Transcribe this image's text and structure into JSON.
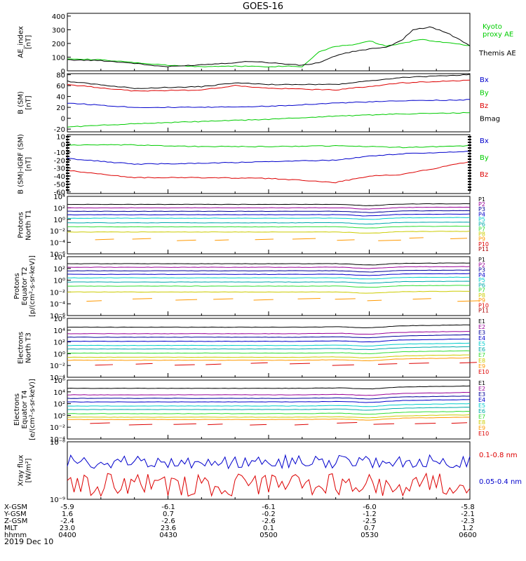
{
  "title": "GOES-16",
  "date_label": "2019 Dec 10",
  "colors": {
    "black": "#000000",
    "green": "#00cc00",
    "red": "#dd0000",
    "blue": "#0000cc",
    "purple": "#990099",
    "darkblue": "#000099",
    "cyan": "#00cccc",
    "teal": "#00aaaa",
    "lime": "#33dd33",
    "yellow": "#cccc00",
    "orange": "#ff9900",
    "lightgreen": "#44ee44",
    "darkred": "#aa0000"
  },
  "ephemeris": {
    "rows": [
      {
        "label": "X-GSM",
        "values": [
          "-5.9",
          "-6.1",
          "-6.1",
          "-6.0",
          "-5.8"
        ]
      },
      {
        "label": "Y-GSM",
        "values": [
          "1.6",
          "0.7",
          "-0.2",
          "-1.2",
          "-2.1"
        ]
      },
      {
        "label": "Z-GSM",
        "values": [
          "-2.4",
          "-2.6",
          "-2.6",
          "-2.5",
          "-2.3"
        ]
      },
      {
        "label": "MLT",
        "values": [
          "23.0",
          "23.6",
          "0.1",
          "0.7",
          "1.2"
        ]
      },
      {
        "label": "hhmm",
        "values": [
          "0400",
          "0430",
          "0500",
          "0530",
          "0600"
        ]
      }
    ]
  },
  "chart_data": [
    {
      "type": "line",
      "id": "ae",
      "ylabel": [
        "AE_index",
        "[nT]"
      ],
      "xlim": [
        0,
        120
      ],
      "ylim": [
        0,
        420
      ],
      "yticks": [
        0,
        100,
        200,
        300,
        400
      ],
      "series": [
        {
          "name": "Kyoto proxy AE",
          "label_lines": [
            "Kyoto",
            "proxy AE"
          ],
          "color": "#00cc00",
          "x": [
            0,
            10,
            20,
            30,
            40,
            50,
            60,
            65,
            70,
            75,
            80,
            85,
            90,
            95,
            100,
            105,
            110,
            115,
            120
          ],
          "y": [
            90,
            80,
            60,
            40,
            30,
            35,
            30,
            35,
            30,
            140,
            180,
            190,
            220,
            180,
            200,
            230,
            215,
            200,
            185
          ]
        },
        {
          "name": "Themis AE",
          "label_lines": [
            "Themis AE"
          ],
          "color": "#000000",
          "x": [
            0,
            10,
            20,
            25,
            30,
            40,
            50,
            55,
            60,
            65,
            70,
            75,
            80,
            85,
            90,
            95,
            100,
            103,
            108,
            113,
            120
          ],
          "y": [
            80,
            75,
            55,
            40,
            30,
            45,
            60,
            70,
            60,
            50,
            40,
            60,
            110,
            140,
            160,
            170,
            230,
            300,
            320,
            280,
            185
          ]
        }
      ]
    },
    {
      "type": "line",
      "id": "bsm",
      "ylabel": [
        "B (SM)",
        "[nT]"
      ],
      "xlim": [
        0,
        120
      ],
      "ylim": [
        -25,
        82
      ],
      "yticks": [
        -20,
        0,
        20,
        40,
        60,
        80
      ],
      "series": [
        {
          "name": "Bx",
          "color": "#0000cc",
          "x": [
            0,
            20,
            40,
            60,
            80,
            100,
            120
          ],
          "y": [
            28,
            20,
            20,
            22,
            28,
            32,
            34
          ]
        },
        {
          "name": "By",
          "color": "#00cc00",
          "x": [
            0,
            20,
            40,
            60,
            80,
            100,
            120
          ],
          "y": [
            -16,
            -10,
            -6,
            -2,
            4,
            8,
            10
          ]
        },
        {
          "name": "Bz",
          "color": "#dd0000",
          "x": [
            0,
            20,
            40,
            50,
            60,
            80,
            100,
            120
          ],
          "y": [
            62,
            50,
            52,
            60,
            55,
            52,
            65,
            70
          ]
        },
        {
          "name": "Bmag",
          "color": "#000000",
          "x": [
            0,
            20,
            40,
            50,
            60,
            80,
            100,
            120
          ],
          "y": [
            68,
            55,
            58,
            65,
            62,
            62,
            75,
            80
          ]
        }
      ]
    },
    {
      "type": "line",
      "id": "bsm_igrf",
      "ylabel": [
        "B (SM)-IGRF (SM)",
        "[nT]"
      ],
      "xlim": [
        0,
        120
      ],
      "ylim": [
        -62,
        12
      ],
      "yticks": [
        -60,
        -50,
        -40,
        -30,
        -20,
        -10,
        0,
        10
      ],
      "series": [
        {
          "name": "Bx",
          "color": "#0000cc",
          "x": [
            0,
            20,
            40,
            60,
            80,
            90,
            100,
            120
          ],
          "y": [
            -18,
            -25,
            -24,
            -22,
            -20,
            -15,
            -12,
            -9
          ]
        },
        {
          "name": "By",
          "color": "#00cc00",
          "x": [
            0,
            20,
            40,
            60,
            80,
            90,
            100,
            120
          ],
          "y": [
            -1,
            -1,
            -3,
            -3,
            -2,
            -3,
            -4,
            -2
          ]
        },
        {
          "name": "Bz",
          "color": "#dd0000",
          "x": [
            0,
            20,
            40,
            60,
            80,
            90,
            100,
            120
          ],
          "y": [
            -33,
            -42,
            -42,
            -43,
            -48,
            -40,
            -38,
            -22
          ]
        }
      ]
    },
    {
      "type": "line",
      "id": "protons_t1",
      "log": true,
      "ylabel": [
        "Protons",
        "North T1"
      ],
      "xlim": [
        0,
        120
      ],
      "ylim": [
        -6,
        4
      ],
      "ytick_labels": [
        "10⁴",
        "10²",
        "10⁰",
        "10⁻²",
        "10⁻⁴",
        "10⁻⁶"
      ],
      "yticks": [
        4,
        2,
        0,
        -2,
        -4,
        -6
      ],
      "legend": [
        "P1",
        "P2",
        "P3",
        "P4",
        "P5",
        "P6",
        "P7",
        "P8",
        "P9",
        "P10",
        "P11"
      ],
      "series": [
        {
          "name": "P1",
          "color": "#000000",
          "y0": 2.6
        },
        {
          "name": "P2",
          "color": "#990099",
          "y0": 2.0
        },
        {
          "name": "P3",
          "color": "#000099",
          "y0": 1.4
        },
        {
          "name": "P4",
          "color": "#0000cc",
          "y0": 0.8
        },
        {
          "name": "P5",
          "color": "#00cccc",
          "y0": 0.2
        },
        {
          "name": "P6",
          "color": "#00aaaa",
          "y0": -0.6
        },
        {
          "name": "P7",
          "color": "#33dd33",
          "y0": -1.3
        },
        {
          "name": "P8",
          "color": "#cccc00",
          "y0": -2.2
        },
        {
          "name": "P9",
          "color": "#ff9900",
          "y0": -3.5,
          "partial": true
        }
      ]
    },
    {
      "type": "line",
      "id": "protons_t2",
      "log": true,
      "ylabel": [
        "Protons",
        "Equator T2",
        "[p/(cm²-s-sr-keV)]"
      ],
      "xlim": [
        0,
        120
      ],
      "ylim": [
        -6,
        4
      ],
      "ytick_labels": [
        "10⁴",
        "10²",
        "10⁰",
        "10⁻²",
        "10⁻⁴",
        "10⁻⁶"
      ],
      "yticks": [
        4,
        2,
        0,
        -2,
        -4,
        -6
      ],
      "legend": [
        "P1",
        "P2",
        "P3",
        "P4",
        "P5",
        "P6",
        "P7",
        "P8",
        "P9",
        "P10",
        "P11"
      ],
      "series": [
        {
          "name": "P1",
          "color": "#000000",
          "y0": 2.8
        },
        {
          "name": "P2",
          "color": "#990099",
          "y0": 2.2
        },
        {
          "name": "P3",
          "color": "#000099",
          "y0": 1.6
        },
        {
          "name": "P4",
          "color": "#0000cc",
          "y0": 1.0
        },
        {
          "name": "P5",
          "color": "#00cccc",
          "y0": 0.4
        },
        {
          "name": "P6",
          "color": "#00aaaa",
          "y0": -0.3
        },
        {
          "name": "P7",
          "color": "#33dd33",
          "y0": -1.0
        },
        {
          "name": "P8",
          "color": "#cccc00",
          "y0": -2.0
        },
        {
          "name": "P9",
          "color": "#ff9900",
          "y0": -3.4,
          "partial": true
        }
      ]
    },
    {
      "type": "line",
      "id": "electrons_t3",
      "log": true,
      "ylabel": [
        "Electrons",
        "North T3"
      ],
      "xlim": [
        0,
        120
      ],
      "ylim": [
        -4,
        6
      ],
      "ytick_labels": [
        "10⁶",
        "10⁴",
        "10²",
        "10⁰",
        "10⁻²",
        "10⁻⁴"
      ],
      "yticks": [
        6,
        4,
        2,
        0,
        -2,
        -4
      ],
      "legend": [
        "E1",
        "E2",
        "E3",
        "E4",
        "E5",
        "E6",
        "E7",
        "E8",
        "E9",
        "E10"
      ],
      "series": [
        {
          "name": "E1",
          "color": "#000000",
          "y0": 4.5
        },
        {
          "name": "E2",
          "color": "#990099",
          "y0": 3.4
        },
        {
          "name": "E3",
          "color": "#000099",
          "y0": 2.8
        },
        {
          "name": "E4",
          "color": "#0000cc",
          "y0": 2.1
        },
        {
          "name": "E5",
          "color": "#00cccc",
          "y0": 1.4
        },
        {
          "name": "E6",
          "color": "#00aaaa",
          "y0": 0.8
        },
        {
          "name": "E7",
          "color": "#33dd33",
          "y0": 0.1
        },
        {
          "name": "E8",
          "color": "#cccc00",
          "y0": -0.6
        },
        {
          "name": "E9",
          "color": "#ff9900",
          "y0": -1.1
        },
        {
          "name": "E10",
          "color": "#dd0000",
          "y0": -1.8,
          "partial": true
        }
      ]
    },
    {
      "type": "line",
      "id": "electrons_t4",
      "log": true,
      "ylabel": [
        "Electrons",
        "Equator T4",
        "[e/(cm²-s-sr-keV)]"
      ],
      "xlim": [
        0,
        120
      ],
      "ylim": [
        -4,
        6
      ],
      "ytick_labels": [
        "10⁶",
        "10⁴",
        "10²",
        "10⁰",
        "10⁻²",
        "10⁻⁴"
      ],
      "yticks": [
        6,
        4,
        2,
        0,
        -2,
        -4
      ],
      "legend": [
        "E1",
        "E2",
        "E3",
        "E4",
        "E5",
        "E6",
        "E7",
        "E8",
        "E9",
        "E10"
      ],
      "series": [
        {
          "name": "E1",
          "color": "#000000",
          "y0": 4.6
        },
        {
          "name": "E2",
          "color": "#990099",
          "y0": 3.5
        },
        {
          "name": "E3",
          "color": "#000099",
          "y0": 2.9
        },
        {
          "name": "E4",
          "color": "#0000cc",
          "y0": 2.3
        },
        {
          "name": "E5",
          "color": "#00cccc",
          "y0": 1.6
        },
        {
          "name": "E6",
          "color": "#00aaaa",
          "y0": 1.0
        },
        {
          "name": "E7",
          "color": "#33dd33",
          "y0": 0.3
        },
        {
          "name": "E8",
          "color": "#cccc00",
          "y0": -0.3
        },
        {
          "name": "E9",
          "color": "#ff9900",
          "y0": -0.7
        },
        {
          "name": "E10",
          "color": "#dd0000",
          "y0": -1.5,
          "partial": true
        }
      ]
    },
    {
      "type": "line",
      "id": "xray",
      "log": true,
      "ylabel": [
        "Xray flux",
        "[W/m²]"
      ],
      "xlim": [
        0,
        120
      ],
      "ylim": [
        -9,
        -8
      ],
      "yticks": [
        -8,
        -9
      ],
      "ytick_labels": [
        "10⁻⁸",
        "10⁻⁹"
      ],
      "series": [
        {
          "name": "0.1-0.8 nm",
          "color": "#dd0000",
          "y0": -8.75,
          "amp": 0.2
        },
        {
          "name": "0.05-0.4 nm",
          "color": "#0000cc",
          "y0": -8.35,
          "amp": 0.08
        }
      ]
    }
  ]
}
